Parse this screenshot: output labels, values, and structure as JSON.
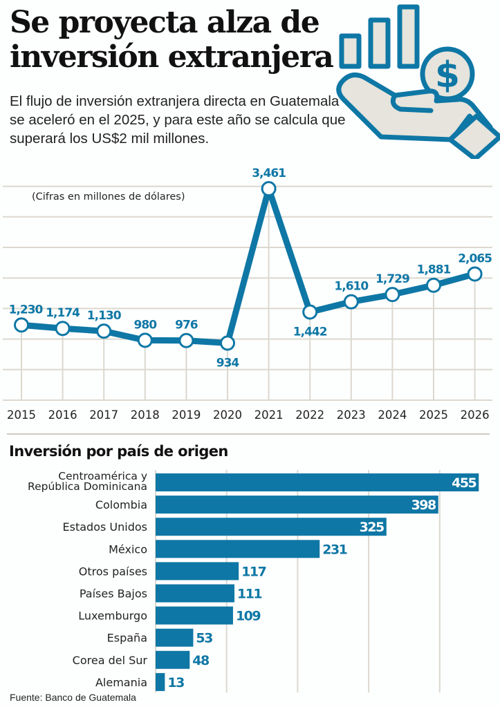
{
  "header": {
    "title_line1": "Se proyecta alza de",
    "title_line2": "inversión extranjera",
    "subtitle": "El flujo de inversión extranjera directa en Guatemala se aceleró en el 2025, y para este año se calcula que superará los US$2 mil millones.",
    "icon": "hand-holding-coin-growth-icon"
  },
  "colors": {
    "accent": "#0e77a5",
    "icon_fill": "#e6e4dc",
    "grid": "#dcd8cf",
    "text": "#1b1b1b",
    "background": "#fdfefe"
  },
  "chart_data": [
    {
      "type": "line",
      "title": "",
      "annotation": "(Cifras en millones de dólares)",
      "xlabel": "",
      "ylabel": "",
      "x": [
        "2015",
        "2016",
        "2017",
        "2018",
        "2019",
        "2020",
        "2021",
        "2022",
        "2023",
        "2024",
        "2025",
        "2026"
      ],
      "series": [
        {
          "name": "Inversión extranjera directa",
          "values": [
            1230,
            1174,
            1130,
            980,
            976,
            934,
            3461,
            1442,
            1610,
            1729,
            1881,
            2065
          ]
        }
      ],
      "data_labels": [
        "1,230",
        "1,174",
        "1,130",
        "980",
        "976",
        "934",
        "3,461",
        "1,442",
        "1,610",
        "1,729",
        "1,881",
        "2,065"
      ],
      "ylim": [
        0,
        3500
      ],
      "ygrid_step": 500,
      "grid": true,
      "ytick_labels_shown": false
    },
    {
      "type": "bar",
      "orientation": "horizontal",
      "title": "Inversión por país de origen",
      "categories": [
        "Centroamérica y República Dominicana",
        "Colombia",
        "Estados Unidos",
        "México",
        "Otros países",
        "Países Bajos",
        "Luxemburgo",
        "España",
        "Corea del Sur",
        "Alemania"
      ],
      "category_lines": [
        [
          "Centroamérica y",
          "República Dominicana"
        ],
        [
          "Colombia"
        ],
        [
          "Estados Unidos"
        ],
        [
          "México"
        ],
        [
          "Otros países"
        ],
        [
          "Países Bajos"
        ],
        [
          "Luxemburgo"
        ],
        [
          "España"
        ],
        [
          "Corea del Sur"
        ],
        [
          "Alemania"
        ]
      ],
      "values": [
        455,
        398,
        325,
        231,
        117,
        111,
        109,
        53,
        48,
        13
      ],
      "xlim": [
        0,
        460
      ],
      "xgrid_step": 100,
      "grid": true
    }
  ],
  "footer": {
    "source": "Fuente: Banco de Guatemala"
  }
}
